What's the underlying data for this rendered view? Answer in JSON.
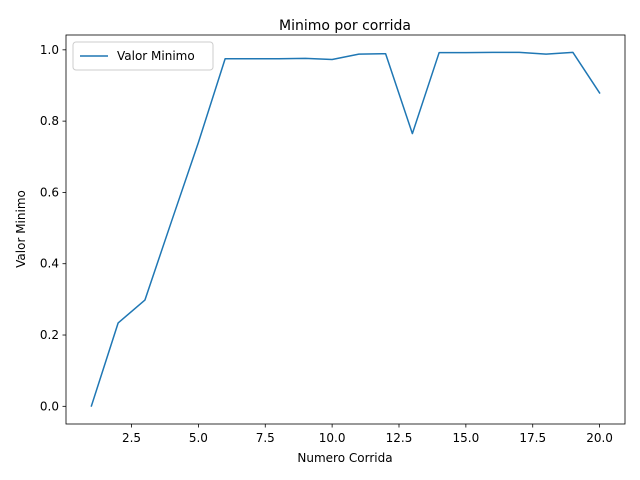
{
  "chart_data": {
    "type": "line",
    "title": "Minimo por corrida",
    "xlabel": "Numero Corrida",
    "ylabel": "Valor Minimo",
    "xlim": [
      0.05,
      20.95
    ],
    "ylim": [
      -0.0496,
      1.0416
    ],
    "xticks": [
      2.5,
      5.0,
      7.5,
      10.0,
      12.5,
      15.0,
      17.5,
      20.0
    ],
    "xtick_labels": [
      "2.5",
      "5.0",
      "7.5",
      "10.0",
      "12.5",
      "15.0",
      "17.5",
      "20.0"
    ],
    "yticks": [
      0.0,
      0.2,
      0.4,
      0.6,
      0.8,
      1.0
    ],
    "ytick_labels": [
      "0.0",
      "0.2",
      "0.4",
      "0.6",
      "0.8",
      "1.0"
    ],
    "grid": false,
    "legend": "upper-left",
    "series": [
      {
        "name": "Valor Minimo",
        "color": "#1f77b4",
        "x": [
          1,
          2,
          3,
          4,
          5,
          6,
          7,
          8,
          9,
          10,
          11,
          12,
          13,
          14,
          15,
          16,
          17,
          18,
          19,
          20
        ],
        "values": [
          0.001,
          0.234,
          0.298,
          0.52,
          0.74,
          0.975,
          0.975,
          0.975,
          0.976,
          0.973,
          0.988,
          0.989,
          0.765,
          0.992,
          0.992,
          0.993,
          0.993,
          0.988,
          0.993,
          0.879
        ]
      }
    ]
  }
}
